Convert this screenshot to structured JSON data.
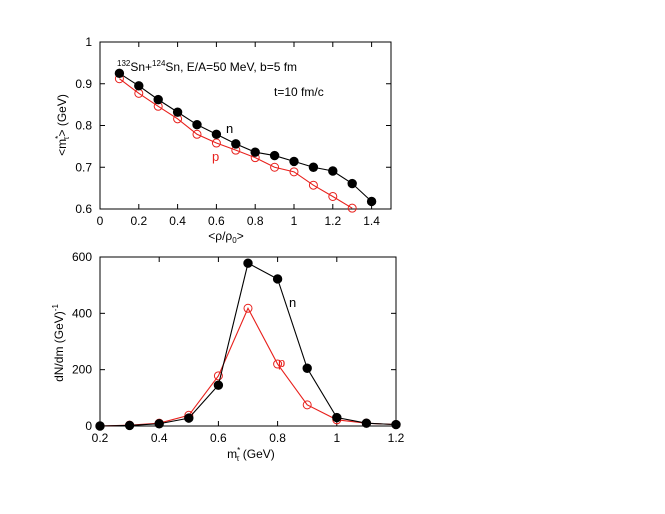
{
  "chart_data": [
    {
      "type": "line",
      "title": "",
      "annotations": {
        "reaction": {
          "mass_a": "132",
          "el_a": "Sn+",
          "mass_b": "124",
          "el_b": "Sn, E/A=50 MeV, b=5 fm"
        },
        "time": "t=10 fm/c"
      },
      "xlabel": {
        "lead": "<ρ/ρ",
        "sub": "0",
        "tail": ">"
      },
      "ylabel": {
        "lead": "<m",
        "sup": "*",
        "sub": "τ",
        "tail": "> (GeV)"
      },
      "xlim": [
        0,
        1.5
      ],
      "ylim": [
        0.6,
        1.0
      ],
      "x_ticks": [
        0,
        0.2,
        0.4,
        0.6,
        0.8,
        1,
        1.2,
        1.4
      ],
      "x_tick_labels": [
        "0",
        "0.2",
        "0.4",
        "0.6",
        "0.8",
        "1",
        "1.2",
        "1.4"
      ],
      "y_ticks": [
        0.6,
        0.7,
        0.8,
        0.9,
        1.0
      ],
      "y_tick_labels": [
        "0.6",
        "0.7",
        "0.8",
        "0.9",
        "1"
      ],
      "grid": false,
      "series": [
        {
          "name": "n",
          "color": "#000000",
          "marker": "filled-circle",
          "x": [
            0.1,
            0.2,
            0.3,
            0.4,
            0.5,
            0.6,
            0.7,
            0.8,
            0.9,
            1.0,
            1.1,
            1.2,
            1.3,
            1.4
          ],
          "y": [
            0.925,
            0.895,
            0.862,
            0.832,
            0.802,
            0.779,
            0.756,
            0.736,
            0.728,
            0.714,
            0.7,
            0.691,
            0.661,
            0.618
          ]
        },
        {
          "name": "p",
          "color": "#e8201c",
          "marker": "open-circle",
          "x": [
            0.1,
            0.2,
            0.3,
            0.4,
            0.5,
            0.6,
            0.7,
            0.8,
            0.9,
            1.0,
            1.1,
            1.2,
            1.3
          ],
          "y": [
            0.912,
            0.877,
            0.846,
            0.816,
            0.779,
            0.758,
            0.741,
            0.723,
            0.7,
            0.689,
            0.657,
            0.63,
            0.602
          ]
        }
      ]
    },
    {
      "type": "line",
      "title": "",
      "xlabel": {
        "lead": "m",
        "sup": "*",
        "sub": "τ",
        "tail": " (GeV)"
      },
      "ylabel": {
        "lead": "dN/dm (GeV)",
        "sup": "-1"
      },
      "xlim": [
        0.2,
        1.2
      ],
      "ylim": [
        0,
        600
      ],
      "x_ticks": [
        0.2,
        0.4,
        0.6,
        0.8,
        1,
        1.2
      ],
      "x_tick_labels": [
        "0.2",
        "0.4",
        "0.6",
        "0.8",
        "1",
        "1.2"
      ],
      "y_ticks": [
        0,
        200,
        400,
        600
      ],
      "y_tick_labels": [
        "0",
        "200",
        "400",
        "600"
      ],
      "grid": false,
      "series": [
        {
          "name": "n",
          "color": "#000000",
          "marker": "filled-circle",
          "x": [
            0.2,
            0.3,
            0.4,
            0.5,
            0.6,
            0.7,
            0.8,
            0.9,
            1.0,
            1.1,
            1.2
          ],
          "y": [
            0,
            2,
            8,
            28,
            145,
            578,
            522,
            205,
            30,
            10,
            5
          ]
        },
        {
          "name": "p",
          "color": "#e8201c",
          "marker": "open-circle",
          "x": [
            0.2,
            0.3,
            0.4,
            0.5,
            0.6,
            0.7,
            0.8,
            0.9,
            1.0,
            1.1,
            1.2
          ],
          "y": [
            0,
            3,
            10,
            38,
            178,
            418,
            220,
            75,
            22,
            10,
            5
          ]
        }
      ]
    }
  ]
}
